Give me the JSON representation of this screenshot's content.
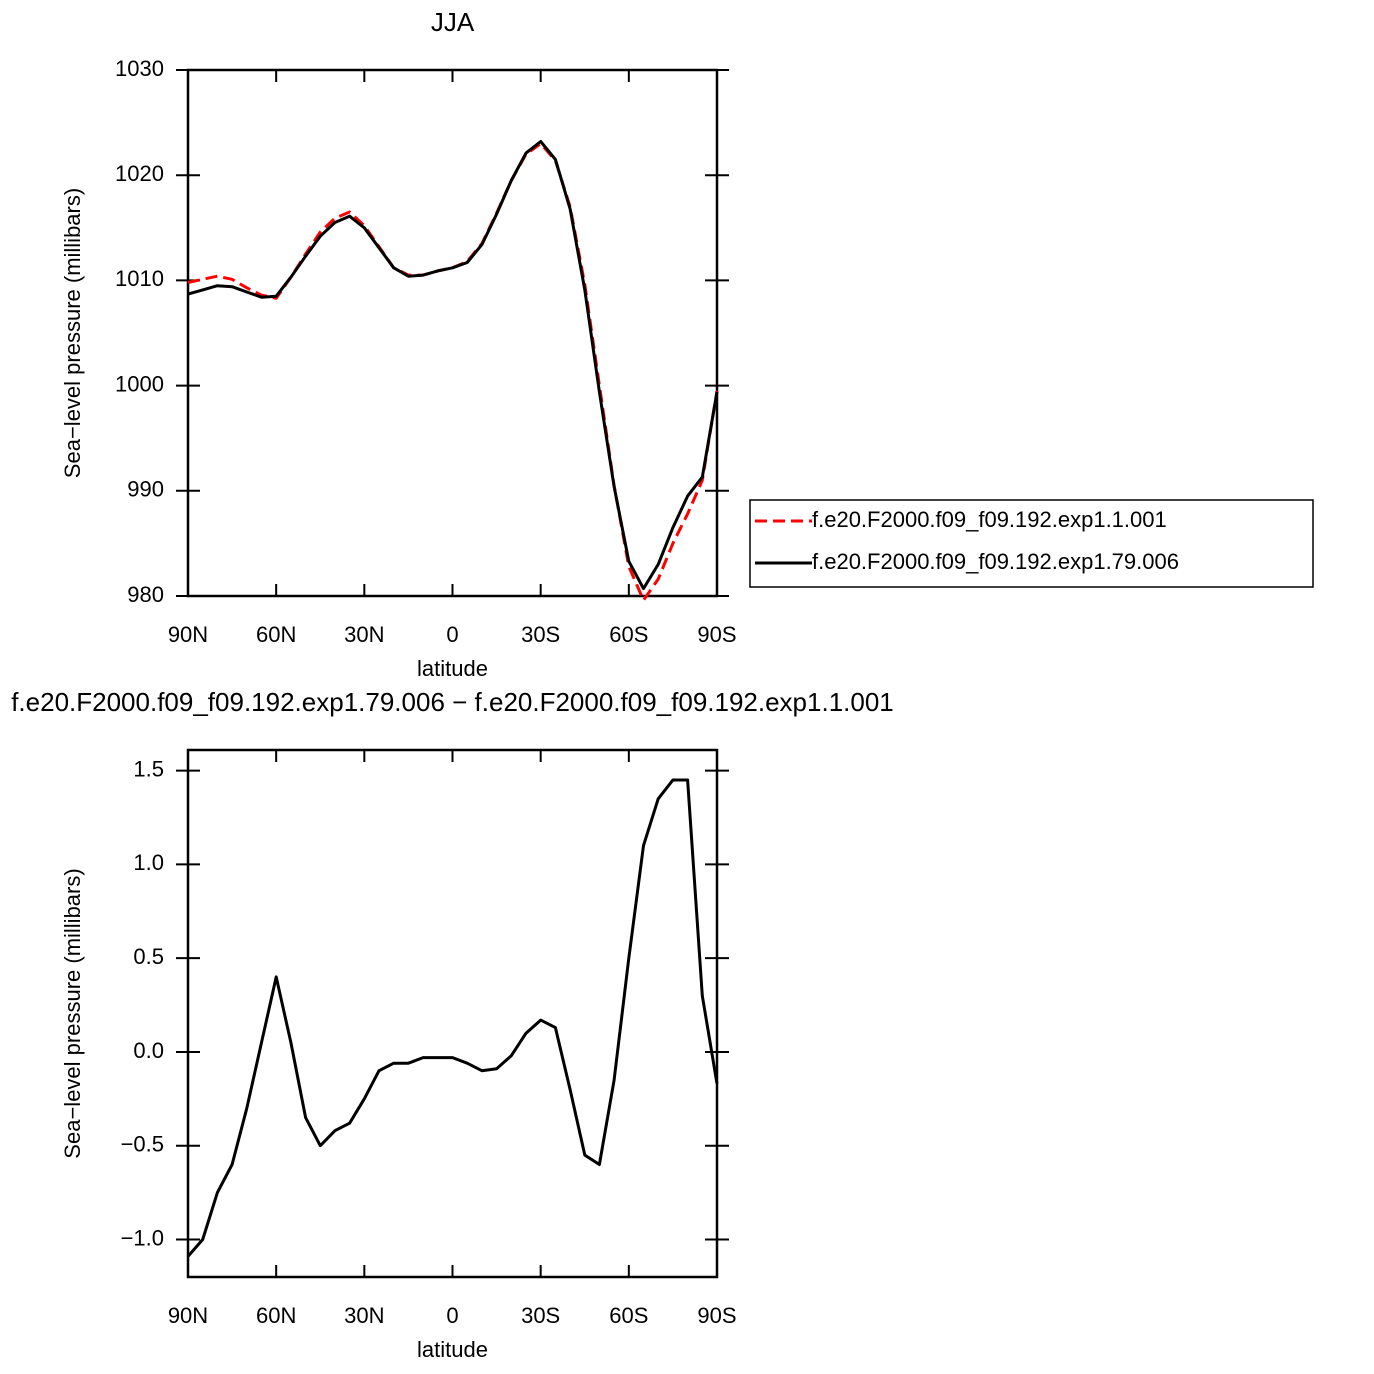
{
  "chart_data": [
    {
      "type": "line",
      "title": "JJA",
      "xlabel": "latitude",
      "ylabel": "Sea−level pressure (millibars)",
      "x": [
        90,
        85,
        80,
        75,
        70,
        65,
        60,
        55,
        50,
        45,
        40,
        35,
        30,
        25,
        20,
        15,
        10,
        5,
        0,
        -5,
        -10,
        -15,
        -20,
        -25,
        -30,
        -35,
        -40,
        -45,
        -50,
        -55,
        -60,
        -65,
        -70,
        -75,
        -80,
        -85,
        -90
      ],
      "xlim": [
        90,
        -90
      ],
      "xticks": [
        {
          "value": 90,
          "label": "90N"
        },
        {
          "value": 60,
          "label": "60N"
        },
        {
          "value": 30,
          "label": "30N"
        },
        0,
        {
          "value": -30,
          "label": "30S"
        },
        {
          "value": -60,
          "label": "60S"
        },
        {
          "value": -90,
          "label": "90S"
        }
      ],
      "ylim": [
        980,
        1030
      ],
      "yticks": [
        980,
        990,
        1000,
        1010,
        1020,
        1030
      ],
      "legend": "right",
      "series": [
        {
          "name": "f.e20.F2000.f09_f09.192.exp1.1.001",
          "color": "#ff0000",
          "style": "dashed",
          "values": [
            1009.8,
            1010.1,
            1010.4,
            1010.1,
            1009.3,
            1008.6,
            1008.3,
            1010.3,
            1012.5,
            1014.6,
            1015.9,
            1016.5,
            1015.2,
            1013.2,
            1011.2,
            1010.5,
            1010.5,
            1010.9,
            1011.2,
            1011.8,
            1013.5,
            1016.4,
            1019.5,
            1022.0,
            1023.0,
            1021.4,
            1017.0,
            1009.6,
            1000.0,
            990.5,
            982.8,
            979.6,
            981.6,
            985.0,
            987.8,
            991.0,
            999.5
          ]
        },
        {
          "name": "f.e20.F2000.f09_f09.192.exp1.79.006",
          "color": "#000000",
          "style": "solid",
          "values": [
            1008.7,
            1009.1,
            1009.5,
            1009.4,
            1008.9,
            1008.4,
            1008.5,
            1010.3,
            1012.3,
            1014.2,
            1015.5,
            1016.1,
            1015.0,
            1013.1,
            1011.2,
            1010.4,
            1010.5,
            1010.9,
            1011.2,
            1011.7,
            1013.4,
            1016.3,
            1019.5,
            1022.1,
            1023.2,
            1021.5,
            1016.8,
            1009.1,
            999.4,
            990.4,
            983.3,
            980.7,
            983.0,
            986.5,
            989.5,
            991.3,
            999.4
          ]
        }
      ]
    },
    {
      "type": "line",
      "title": "f.e20.F2000.f09_f09.192.exp1.79.006 − f.e20.F2000.f09_f09.192.exp1.1.001",
      "xlabel": "latitude",
      "ylabel": "Sea−level pressure (millibars)",
      "x": [
        90,
        85,
        80,
        75,
        70,
        65,
        60,
        55,
        50,
        45,
        40,
        35,
        30,
        25,
        20,
        15,
        10,
        5,
        0,
        -5,
        -10,
        -15,
        -20,
        -25,
        -30,
        -35,
        -40,
        -45,
        -50,
        -55,
        -60,
        -65,
        -70,
        -75,
        -80,
        -85,
        -90
      ],
      "xlim": [
        90,
        -90
      ],
      "xticks": [
        {
          "value": 90,
          "label": "90N"
        },
        {
          "value": 60,
          "label": "60N"
        },
        {
          "value": 30,
          "label": "30N"
        },
        0,
        {
          "value": -30,
          "label": "30S"
        },
        {
          "value": -60,
          "label": "60S"
        },
        {
          "value": -90,
          "label": "90S"
        }
      ],
      "ylim": [
        -1.2,
        1.61
      ],
      "yticks": [
        {
          "value": -1.0,
          "label": "−1.0"
        },
        {
          "value": -0.5,
          "label": "−0.5"
        },
        {
          "value": 0.0,
          "label": "0.0"
        },
        0.5,
        {
          "value": 1.0,
          "label": "1.0"
        },
        1.5
      ],
      "series": [
        {
          "color": "#000000",
          "style": "solid",
          "values": [
            -1.09,
            -1.0,
            -0.75,
            -0.6,
            -0.3,
            0.05,
            0.4,
            0.05,
            -0.35,
            -0.5,
            -0.42,
            -0.38,
            -0.25,
            -0.1,
            -0.06,
            -0.06,
            -0.03,
            -0.03,
            -0.03,
            -0.06,
            -0.1,
            -0.09,
            -0.02,
            0.1,
            0.17,
            0.13,
            -0.2,
            -0.55,
            -0.6,
            -0.15,
            0.5,
            1.1,
            1.35,
            1.45,
            1.45,
            0.3,
            -0.17
          ]
        }
      ]
    }
  ]
}
